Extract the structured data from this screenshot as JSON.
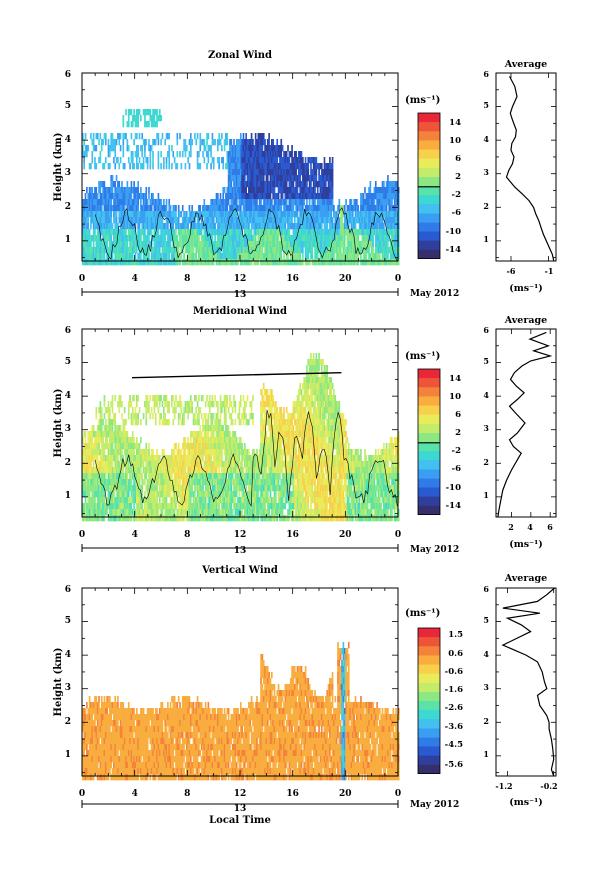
{
  "chart_data": [
    {
      "type": "heatmap",
      "title": "Zonal Wind",
      "xlabel": "",
      "ylabel": "Height (km)",
      "xticks": [
        "0",
        "4",
        "8",
        "12",
        "16",
        "20",
        "0"
      ],
      "yticks": [
        "1",
        "2",
        "3",
        "4",
        "5",
        "6"
      ],
      "xlim": [
        0,
        24
      ],
      "ylim": [
        0.4,
        6
      ],
      "date_center": "13",
      "date_right": "May 2012",
      "colorbar": {
        "unit": "(ms⁻¹)",
        "ticks": [
          "14",
          "10",
          "6",
          "2",
          "-2",
          "-6",
          "-10",
          "-14"
        ],
        "min": -16,
        "max": 16
      },
      "profile": {
        "title": "Average",
        "xlabel": "(ms⁻¹)",
        "xticks": [
          "-6",
          "-1"
        ],
        "xlim": [
          -8,
          0
        ],
        "x": [
          -6.2,
          -5.5,
          -5.2,
          -5.8,
          -6.1,
          -5.8,
          -5.3,
          -5.4,
          -5.9,
          -6.0,
          -5.6,
          -5.8,
          -6.3,
          -6.6,
          -5.5,
          -4.5,
          -3.6,
          -3.0,
          -2.7,
          -2.3,
          -2.0,
          -1.7,
          -1.3,
          -0.9,
          -0.5,
          -0.3
        ],
        "y": [
          5.9,
          5.6,
          5.3,
          5.0,
          4.8,
          4.6,
          4.3,
          4.1,
          3.9,
          3.7,
          3.5,
          3.3,
          3.1,
          2.9,
          2.6,
          2.4,
          2.2,
          2.0,
          1.8,
          1.6,
          1.4,
          1.2,
          1.0,
          0.8,
          0.6,
          0.4
        ]
      }
    },
    {
      "type": "heatmap",
      "title": "Meridional Wind",
      "xlabel": "",
      "ylabel": "Height (km)",
      "xticks": [
        "0",
        "4",
        "8",
        "12",
        "16",
        "20",
        "0"
      ],
      "yticks": [
        "1",
        "2",
        "3",
        "4",
        "5",
        "6"
      ],
      "xlim": [
        0,
        24
      ],
      "ylim": [
        0.4,
        6
      ],
      "date_center": "13",
      "date_right": "May 2012",
      "colorbar": {
        "unit": "(ms⁻¹)",
        "ticks": [
          "14",
          "10",
          "6",
          "2",
          "-2",
          "-6",
          "-10",
          "-14"
        ],
        "min": -16,
        "max": 16
      },
      "profile": {
        "title": "Average",
        "xlabel": "(ms⁻¹)",
        "xticks": [
          "2",
          "4",
          "6"
        ],
        "xlim": [
          0.4,
          6.6
        ],
        "x": [
          5.6,
          3.9,
          5.8,
          4.3,
          6.0,
          4.0,
          3.1,
          2.3,
          1.9,
          2.5,
          3.3,
          2.6,
          1.8,
          2.4,
          3.4,
          2.6,
          1.8,
          2.2,
          3.0,
          2.6,
          2.0,
          1.5,
          1.1,
          0.9,
          0.7,
          0.6
        ],
        "y": [
          5.9,
          5.7,
          5.5,
          5.35,
          5.2,
          5.05,
          4.9,
          4.7,
          4.5,
          4.3,
          4.1,
          3.9,
          3.7,
          3.5,
          3.2,
          2.9,
          2.7,
          2.5,
          2.3,
          2.1,
          1.8,
          1.5,
          1.2,
          0.9,
          0.6,
          0.4
        ]
      }
    },
    {
      "type": "heatmap",
      "title": "Vertical Wind",
      "xlabel": "Local Time",
      "ylabel": "Height (km)",
      "xticks": [
        "0",
        "4",
        "8",
        "12",
        "16",
        "20",
        "0"
      ],
      "yticks": [
        "1",
        "2",
        "3",
        "4",
        "5",
        "6"
      ],
      "xlim": [
        0,
        24
      ],
      "ylim": [
        0.4,
        6
      ],
      "date_center": "13",
      "date_right": "May 2012",
      "colorbar": {
        "unit": "(ms⁻¹)",
        "ticks": [
          "1.5",
          "0.6",
          "-0.6",
          "-1.6",
          "-2.6",
          "-3.6",
          "-4.5",
          "-5.6"
        ],
        "min": -6.1,
        "max": 2.0
      },
      "profile": {
        "title": "Average",
        "xlabel": "(ms⁻¹)",
        "xticks": [
          "-1.2",
          "-0.2"
        ],
        "xlim": [
          -1.45,
          -0.15
        ],
        "x": [
          -0.18,
          -0.35,
          -0.55,
          -1.3,
          -0.5,
          -1.2,
          -0.9,
          -0.7,
          -1.3,
          -0.8,
          -0.55,
          -0.45,
          -0.4,
          -0.35,
          -0.55,
          -0.5,
          -0.35,
          -0.3,
          -0.3,
          -0.25,
          -0.22,
          -0.2,
          -0.25,
          -0.2
        ],
        "y": [
          6.0,
          5.8,
          5.6,
          5.4,
          5.25,
          5.1,
          4.9,
          4.7,
          4.3,
          4.0,
          3.8,
          3.5,
          3.2,
          3.0,
          2.8,
          2.5,
          2.2,
          2.0,
          1.8,
          1.5,
          1.2,
          0.9,
          0.6,
          0.4
        ]
      }
    }
  ]
}
